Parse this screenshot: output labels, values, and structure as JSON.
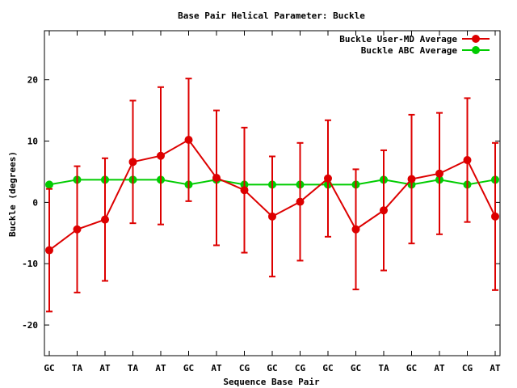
{
  "chart_data": {
    "type": "line",
    "title": "Base Pair Helical Parameter: Buckle",
    "xlabel": "Sequence Base Pair",
    "ylabel": "Buckle (degrees)",
    "ylim": [
      -25,
      28
    ],
    "yticks": [
      -20,
      -10,
      0,
      10,
      20
    ],
    "grid": false,
    "legend_position": "top-right",
    "categories": [
      "GC",
      "TA",
      "AT",
      "TA",
      "AT",
      "GC",
      "AT",
      "CG",
      "GC",
      "CG",
      "GC",
      "GC",
      "TA",
      "GC",
      "AT",
      "CG",
      "AT"
    ],
    "series": [
      {
        "name": "Buckle User-MD Average",
        "color": "#dd0000",
        "values": [
          -7.8,
          -4.4,
          -2.8,
          6.6,
          7.6,
          10.2,
          4.0,
          2.0,
          -2.3,
          0.1,
          3.9,
          -4.4,
          -1.3,
          3.8,
          4.7,
          6.9,
          -2.3
        ],
        "error": [
          10.0,
          10.3,
          10.0,
          10.0,
          11.2,
          10.0,
          11.0,
          10.2,
          9.8,
          9.6,
          9.5,
          9.8,
          9.8,
          10.5,
          9.9,
          10.1,
          12.0
        ]
      },
      {
        "name": "Buckle ABC Average",
        "color": "#00cc00",
        "values": [
          2.9,
          3.7,
          3.7,
          3.7,
          3.7,
          2.9,
          3.7,
          2.9,
          2.9,
          2.9,
          2.9,
          2.9,
          3.7,
          2.9,
          3.7,
          2.9,
          3.7
        ]
      }
    ]
  }
}
